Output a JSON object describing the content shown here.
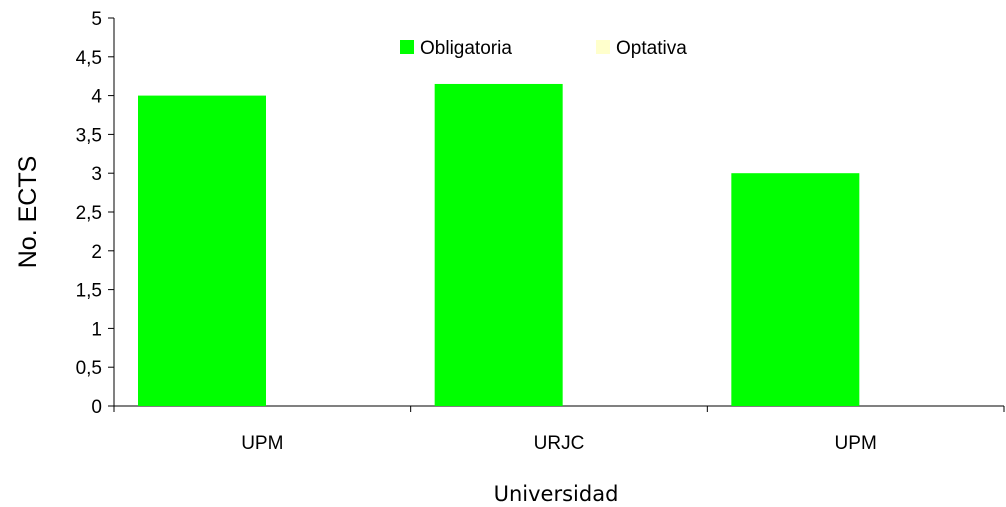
{
  "chart_data": {
    "type": "bar",
    "categories": [
      "UPM",
      "URJC",
      "UPM"
    ],
    "series": [
      {
        "name": "Obligatoria",
        "values": [
          4,
          4.15,
          3
        ],
        "color": "#00ff00"
      },
      {
        "name": "Optativa",
        "values": [
          0,
          0,
          0
        ],
        "color": "#ffffcc"
      }
    ],
    "xlabel": "Universidad",
    "ylabel": "No. ECTS",
    "ylim": [
      0,
      5
    ],
    "yticks": [
      "0",
      "0,5",
      "1",
      "1,5",
      "2",
      "2,5",
      "3",
      "3,5",
      "4",
      "4,5",
      "5"
    ],
    "grid": false,
    "legend_position": "top-center"
  }
}
